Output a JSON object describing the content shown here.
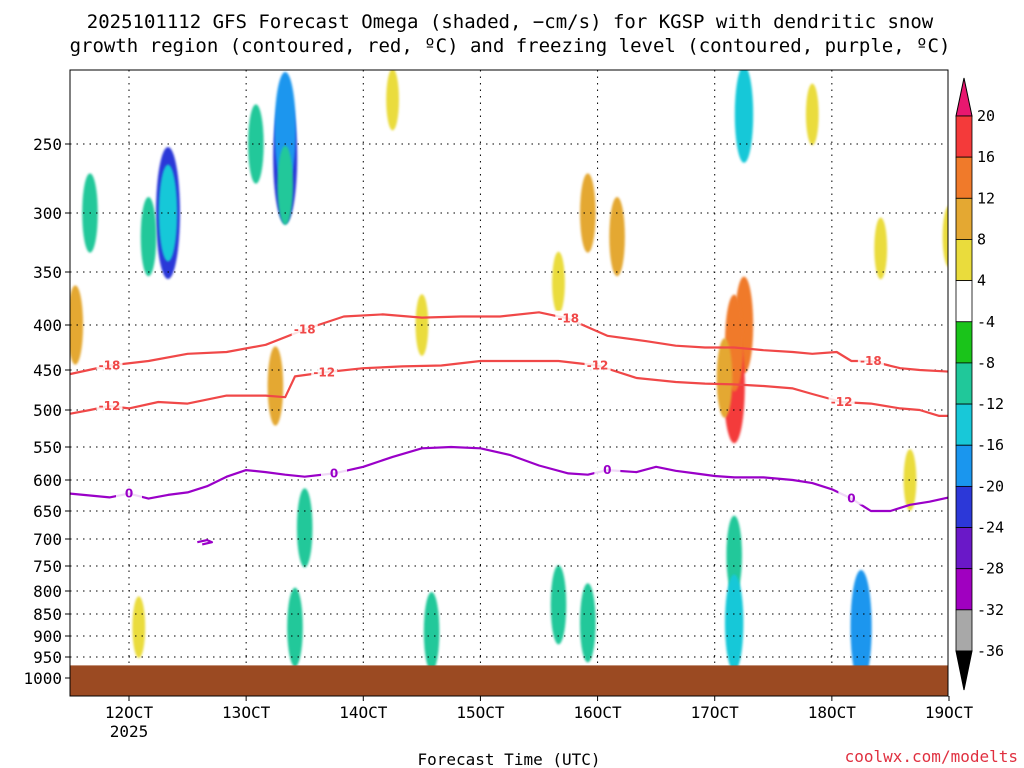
{
  "title_line1": "2025101112 GFS Forecast Omega (shaded, −cm/s) for KGSP with dendritic snow",
  "title_line2": "growth region (contoured, red, ºC) and freezing level (contoured, purple, ºC)",
  "credit": "coolwx.com/modelts",
  "colors": {
    "ground": "#9b4a22",
    "isotherm_dgz": "#f04848",
    "freezing_level": "#9a00c8",
    "grid": "#000000"
  },
  "chart_data": {
    "type": "heatmap",
    "xlabel": "Forecast Time (UTC)",
    "ylabel": "",
    "x_ticks": [
      {
        "hour": 0,
        "label": "12OCT",
        "sublabel": "2025"
      },
      {
        "hour": 24,
        "label": "13OCT",
        "sublabel": ""
      },
      {
        "hour": 48,
        "label": "14OCT",
        "sublabel": ""
      },
      {
        "hour": 72,
        "label": "15OCT",
        "sublabel": ""
      },
      {
        "hour": 96,
        "label": "16OCT",
        "sublabel": ""
      },
      {
        "hour": 120,
        "label": "17OCT",
        "sublabel": ""
      },
      {
        "hour": 144,
        "label": "18OCT",
        "sublabel": ""
      },
      {
        "hour": 168,
        "label": "19OCT",
        "sublabel": ""
      }
    ],
    "xlim_hours": [
      -12,
      168
    ],
    "y_ticks_hpa": [
      250,
      300,
      350,
      400,
      450,
      500,
      550,
      600,
      650,
      700,
      750,
      800,
      850,
      900,
      950,
      1000
    ],
    "ylim_hpa": [
      200,
      1000
    ],
    "ground_top_hpa": 970,
    "colorbar": {
      "levels": [
        -36,
        -32,
        -28,
        -24,
        -20,
        -16,
        -12,
        -8,
        -4,
        4,
        8,
        12,
        16,
        20
      ],
      "labels": [
        "20",
        "16",
        "12",
        "8",
        "4",
        "-4",
        "-8",
        "-12",
        "-16",
        "-20",
        "-24",
        "-28",
        "-32",
        "-36"
      ],
      "colors_top_to_bottom": [
        "#e8176f",
        "#f43a3a",
        "#f07a2a",
        "#e4a832",
        "#eadc3c",
        "#ffffff",
        "#1ac41a",
        "#20c89a",
        "#18c8d8",
        "#1a96ee",
        "#2c38d8",
        "#6a18c8",
        "#a000c0",
        "#a8a8a8",
        "#000000"
      ]
    },
    "contours": {
      "minus18": {
        "label": "-18",
        "points_hour_hpa": [
          [
            -12,
            455
          ],
          [
            -4,
            445
          ],
          [
            4,
            440
          ],
          [
            12,
            432
          ],
          [
            20,
            430
          ],
          [
            28,
            422
          ],
          [
            36,
            405
          ],
          [
            44,
            392
          ],
          [
            52,
            390
          ],
          [
            60,
            393
          ],
          [
            68,
            392
          ],
          [
            76,
            392
          ],
          [
            84,
            388
          ],
          [
            90,
            394
          ],
          [
            98,
            412
          ],
          [
            106,
            418
          ],
          [
            112,
            423
          ],
          [
            118,
            425
          ],
          [
            124,
            425
          ],
          [
            130,
            428
          ],
          [
            136,
            430
          ],
          [
            140,
            432
          ],
          [
            145,
            430
          ],
          [
            148,
            440
          ],
          [
            152,
            440
          ],
          [
            158,
            448
          ],
          [
            162,
            450
          ],
          [
            168,
            452
          ]
        ]
      },
      "minus12": {
        "label": "-12",
        "points_hour_hpa": [
          [
            -12,
            505
          ],
          [
            -8,
            500
          ],
          [
            -4,
            495
          ],
          [
            0,
            498
          ],
          [
            6,
            490
          ],
          [
            12,
            492
          ],
          [
            20,
            482
          ],
          [
            28,
            482
          ],
          [
            32,
            484
          ],
          [
            34,
            458
          ],
          [
            40,
            453
          ],
          [
            48,
            448
          ],
          [
            56,
            446
          ],
          [
            64,
            445
          ],
          [
            72,
            440
          ],
          [
            80,
            440
          ],
          [
            88,
            440
          ],
          [
            96,
            445
          ],
          [
            104,
            460
          ],
          [
            112,
            465
          ],
          [
            118,
            467
          ],
          [
            124,
            468
          ],
          [
            130,
            470
          ],
          [
            136,
            473
          ],
          [
            140,
            480
          ],
          [
            146,
            490
          ],
          [
            152,
            492
          ],
          [
            158,
            498
          ],
          [
            162,
            500
          ],
          [
            166,
            508
          ],
          [
            168,
            508
          ]
        ]
      },
      "zero_c": {
        "label": "0",
        "points_hour_hpa": [
          [
            -12,
            622
          ],
          [
            -8,
            625
          ],
          [
            -4,
            628
          ],
          [
            0,
            622
          ],
          [
            4,
            630
          ],
          [
            8,
            624
          ],
          [
            12,
            620
          ],
          [
            16,
            610
          ],
          [
            20,
            595
          ],
          [
            24,
            585
          ],
          [
            28,
            588
          ],
          [
            32,
            592
          ],
          [
            36,
            595
          ],
          [
            42,
            590
          ],
          [
            48,
            580
          ],
          [
            54,
            565
          ],
          [
            60,
            552
          ],
          [
            66,
            550
          ],
          [
            72,
            552
          ],
          [
            78,
            562
          ],
          [
            84,
            578
          ],
          [
            90,
            590
          ],
          [
            94,
            592
          ],
          [
            98,
            585
          ],
          [
            104,
            588
          ],
          [
            108,
            580
          ],
          [
            112,
            586
          ],
          [
            116,
            590
          ],
          [
            120,
            594
          ],
          [
            124,
            596
          ],
          [
            130,
            596
          ],
          [
            136,
            600
          ],
          [
            140,
            605
          ],
          [
            144,
            615
          ],
          [
            148,
            630
          ],
          [
            152,
            650
          ],
          [
            156,
            650
          ],
          [
            160,
            640
          ],
          [
            164,
            635
          ],
          [
            168,
            628
          ]
        ]
      },
      "small_ring": {
        "label": "",
        "points_hour_hpa": [
          [
            14,
            706
          ],
          [
            16,
            702
          ],
          [
            17,
            706
          ],
          [
            15,
            710
          ]
        ]
      }
    },
    "omega_blobs": [
      {
        "hour": 8,
        "hpa": 300,
        "value": -20
      },
      {
        "hour": 8,
        "hpa": 300,
        "value": -12
      },
      {
        "hour": 32,
        "hpa": 260,
        "value": -20
      },
      {
        "hour": 32,
        "hpa": 240,
        "value": -16
      },
      {
        "hour": 32,
        "hpa": 280,
        "value": -8
      },
      {
        "hour": 26,
        "hpa": 250,
        "value": -8
      },
      {
        "hour": 4,
        "hpa": 320,
        "value": -8
      },
      {
        "hour": -8,
        "hpa": 300,
        "value": -8
      },
      {
        "hour": 126,
        "hpa": 230,
        "value": -12
      },
      {
        "hour": 126,
        "hpa": 400,
        "value": 12
      },
      {
        "hour": 124,
        "hpa": 470,
        "value": 16
      },
      {
        "hour": 124,
        "hpa": 420,
        "value": 12
      },
      {
        "hour": 122,
        "hpa": 460,
        "value": 8
      },
      {
        "hour": 100,
        "hpa": 320,
        "value": 8
      },
      {
        "hour": 88,
        "hpa": 360,
        "value": 4
      },
      {
        "hour": 94,
        "hpa": 300,
        "value": 8
      },
      {
        "hour": 124,
        "hpa": 730,
        "value": -8
      },
      {
        "hour": 124,
        "hpa": 870,
        "value": -12
      },
      {
        "hour": 150,
        "hpa": 880,
        "value": -16
      },
      {
        "hour": 30,
        "hpa": 470,
        "value": 8
      },
      {
        "hour": 34,
        "hpa": 880,
        "value": -8
      },
      {
        "hour": 88,
        "hpa": 830,
        "value": -8
      },
      {
        "hour": 94,
        "hpa": 870,
        "value": -8
      },
      {
        "hour": 160,
        "hpa": 600,
        "value": 4
      },
      {
        "hour": 2,
        "hpa": 880,
        "value": 4
      },
      {
        "hour": 60,
        "hpa": 400,
        "value": 4
      },
      {
        "hour": 54,
        "hpa": 220,
        "value": 4
      },
      {
        "hour": 140,
        "hpa": 230,
        "value": 4
      },
      {
        "hour": 154,
        "hpa": 330,
        "value": 4
      },
      {
        "hour": -11,
        "hpa": 400,
        "value": 8
      },
      {
        "hour": 62,
        "hpa": 890,
        "value": -8
      },
      {
        "hour": 36,
        "hpa": 680,
        "value": -8
      },
      {
        "hour": 168,
        "hpa": 320,
        "value": 4
      }
    ]
  }
}
